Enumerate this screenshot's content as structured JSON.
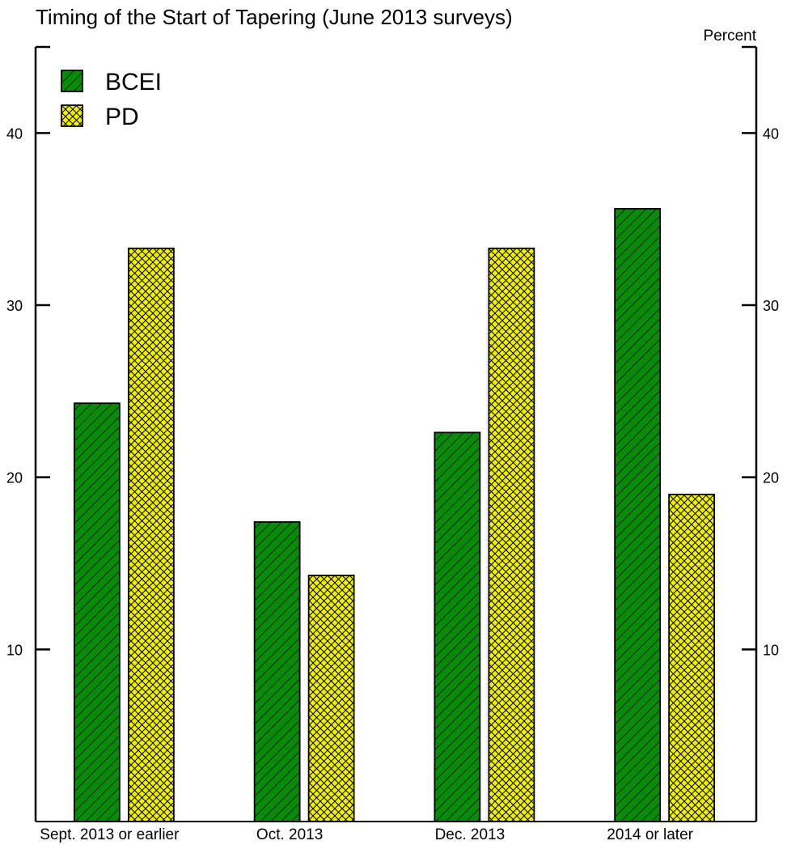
{
  "chart_data": {
    "type": "bar",
    "title": "Timing of the Start of Tapering (June 2013 surveys)",
    "unit_label": "Percent",
    "categories": [
      "Sept. 2013 or earlier",
      "Oct. 2013",
      "Dec. 2013",
      "2014 or later"
    ],
    "series": [
      {
        "name": "BCEI",
        "values": [
          24.3,
          17.4,
          22.6,
          35.6
        ],
        "color": "#0a8a0a",
        "pattern": "diagonal-hatch"
      },
      {
        "name": "PD",
        "values": [
          33.3,
          14.3,
          33.3,
          19.0
        ],
        "color": "#f0f000",
        "pattern": "cross-hatch"
      }
    ],
    "ylim": [
      0,
      45
    ],
    "yticks": [
      10,
      20,
      30,
      40
    ],
    "legend_position": "top-left",
    "grid": false
  }
}
